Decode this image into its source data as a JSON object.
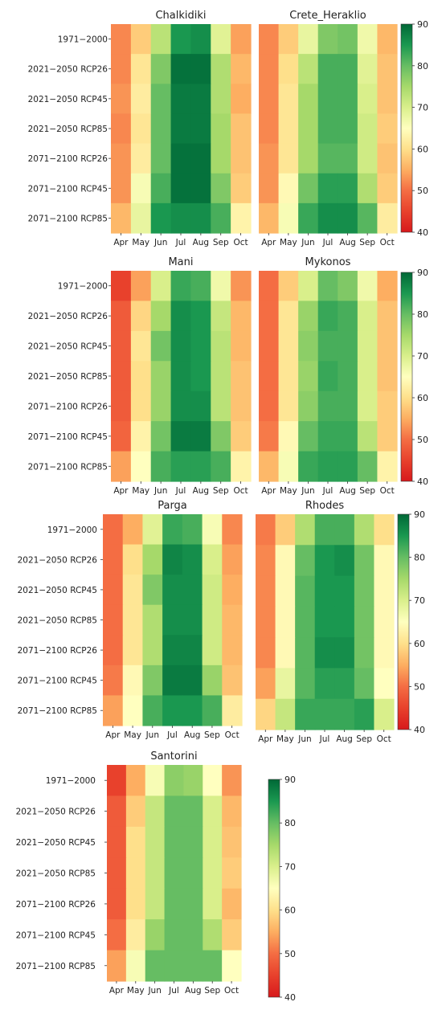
{
  "chart_data": {
    "type": "heatmap",
    "months": [
      "Apr",
      "May",
      "Jun",
      "Jul",
      "Aug",
      "Sep",
      "Oct"
    ],
    "periods": [
      "1971−2000",
      "2021−2050 RCP26",
      "2021−2050 RCP45",
      "2021−2050 RCP85",
      "2071−2100 RCP26",
      "2071−2100 RCP45",
      "2071−2100 RCP85"
    ],
    "colorbar": {
      "min": 40,
      "max": 90,
      "ticks": [
        "90",
        "80",
        "70",
        "60",
        "50",
        "40"
      ],
      "colormap": "RdYlGn"
    },
    "panels": [
      {
        "title": "Chalkidiki",
        "values": [
          [
            52,
            58,
            73,
            85,
            86,
            69,
            54
          ],
          [
            52,
            61,
            78,
            89,
            89,
            74,
            56
          ],
          [
            53,
            62,
            80,
            88,
            88,
            74,
            55
          ],
          [
            52,
            61,
            80,
            88,
            88,
            75,
            57
          ],
          [
            53,
            62,
            80,
            89,
            89,
            75,
            57
          ],
          [
            53,
            66,
            82,
            89,
            89,
            78,
            58
          ],
          [
            56,
            68,
            85,
            86,
            86,
            82,
            63
          ]
        ]
      },
      {
        "title": "Crete_Heraklio",
        "values": [
          [
            52,
            58,
            68,
            78,
            79,
            67,
            56
          ],
          [
            52,
            60,
            73,
            82,
            82,
            69,
            57
          ],
          [
            52,
            61,
            75,
            82,
            82,
            70,
            57
          ],
          [
            52,
            61,
            75,
            82,
            82,
            71,
            58
          ],
          [
            53,
            61,
            75,
            81,
            81,
            71,
            57
          ],
          [
            53,
            64,
            79,
            84,
            84,
            74,
            58
          ],
          [
            56,
            66,
            83,
            86,
            86,
            81,
            62
          ]
        ]
      },
      {
        "title": "Mani",
        "values": [
          [
            45,
            54,
            70,
            83,
            82,
            67,
            53
          ],
          [
            48,
            59,
            75,
            86,
            85,
            72,
            56
          ],
          [
            48,
            61,
            79,
            86,
            85,
            73,
            56
          ],
          [
            48,
            60,
            76,
            86,
            85,
            73,
            57
          ],
          [
            48,
            60,
            76,
            86,
            86,
            73,
            57
          ],
          [
            49,
            63,
            79,
            88,
            88,
            78,
            58
          ],
          [
            54,
            65,
            82,
            84,
            84,
            82,
            63
          ]
        ]
      },
      {
        "title": "Mykonos",
        "values": [
          [
            50,
            58,
            70,
            80,
            78,
            67,
            55
          ],
          [
            50,
            61,
            76,
            83,
            82,
            70,
            57
          ],
          [
            50,
            61,
            77,
            82,
            82,
            70,
            57
          ],
          [
            50,
            61,
            76,
            83,
            82,
            70,
            57
          ],
          [
            50,
            61,
            77,
            82,
            82,
            70,
            58
          ],
          [
            51,
            64,
            80,
            83,
            83,
            73,
            58
          ],
          [
            56,
            66,
            83,
            84,
            84,
            80,
            63
          ]
        ]
      },
      {
        "title": "Parga",
        "values": [
          [
            50,
            55,
            69,
            83,
            82,
            66,
            52
          ],
          [
            50,
            60,
            75,
            87,
            86,
            70,
            54
          ],
          [
            50,
            61,
            78,
            86,
            86,
            71,
            55
          ],
          [
            50,
            61,
            74,
            86,
            86,
            71,
            56
          ],
          [
            50,
            61,
            74,
            87,
            87,
            71,
            56
          ],
          [
            51,
            64,
            78,
            88,
            88,
            76,
            57
          ],
          [
            54,
            65,
            82,
            85,
            85,
            82,
            62
          ]
        ]
      },
      {
        "title": "Rhodes",
        "values": [
          [
            51,
            58,
            74,
            82,
            82,
            74,
            60
          ],
          [
            52,
            64,
            80,
            85,
            86,
            79,
            64
          ],
          [
            52,
            64,
            81,
            85,
            85,
            79,
            64
          ],
          [
            52,
            64,
            81,
            85,
            85,
            79,
            64
          ],
          [
            52,
            64,
            81,
            86,
            86,
            79,
            64
          ],
          [
            54,
            68,
            81,
            84,
            84,
            80,
            65
          ],
          [
            59,
            72,
            83,
            83,
            83,
            84,
            70
          ]
        ]
      },
      {
        "title": "Santorini",
        "values": [
          [
            45,
            55,
            66,
            77,
            76,
            65,
            53
          ],
          [
            48,
            58,
            72,
            80,
            80,
            70,
            56
          ],
          [
            48,
            60,
            72,
            80,
            80,
            70,
            57
          ],
          [
            48,
            60,
            72,
            80,
            80,
            70,
            58
          ],
          [
            48,
            60,
            72,
            80,
            80,
            70,
            56
          ],
          [
            50,
            62,
            76,
            80,
            80,
            74,
            58
          ],
          [
            54,
            66,
            80,
            80,
            80,
            80,
            65
          ]
        ]
      }
    ]
  }
}
